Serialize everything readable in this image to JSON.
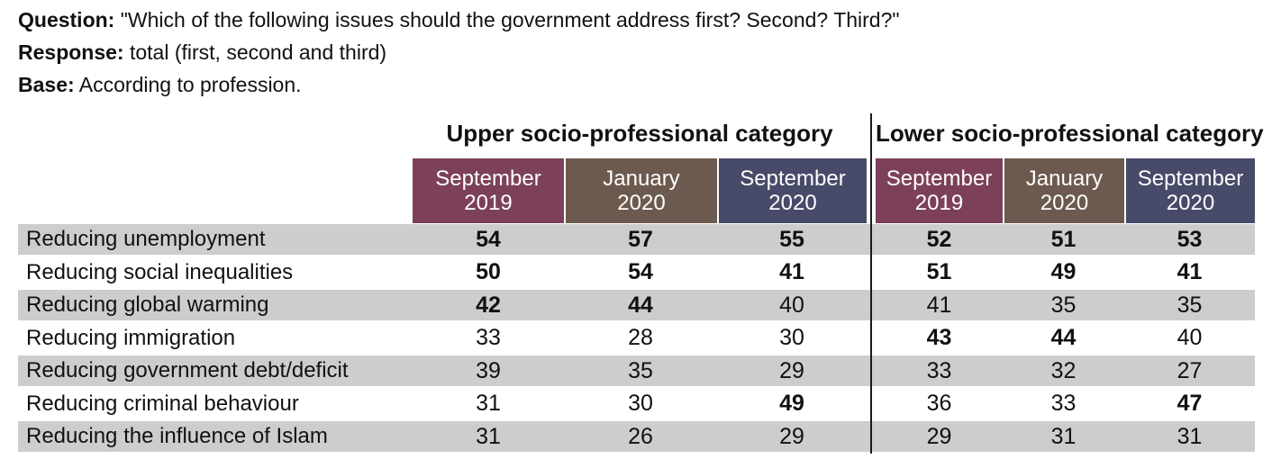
{
  "meta": {
    "question_label": "Question:",
    "question_text": "\"Which of the following issues should the government address first? Second? Third?\"",
    "response_label": "Response:",
    "response_text": "total (first, second and third)",
    "base_label": "Base:",
    "base_text": "According to profession."
  },
  "colors": {
    "september_2019": "#7c4158",
    "january_2020": "#6c5a4e",
    "september_2020": "#474a68",
    "row_alternate_gray": "#cdcdcd"
  },
  "table": {
    "groups": [
      {
        "label": "Upper socio-professional category"
      },
      {
        "label": "Lower socio-professional category"
      }
    ],
    "columns": [
      {
        "group": "upper",
        "line1": "September",
        "line2": "2019"
      },
      {
        "group": "upper",
        "line1": "January",
        "line2": "2020"
      },
      {
        "group": "upper",
        "line1": "September",
        "line2": "2020"
      },
      {
        "group": "lower",
        "line1": "September",
        "line2": "2019"
      },
      {
        "group": "lower",
        "line1": "January",
        "line2": "2020"
      },
      {
        "group": "lower",
        "line1": "September",
        "line2": "2020"
      }
    ],
    "rows": [
      {
        "label": "Reducing unemployment",
        "values": [
          "54",
          "57",
          "55",
          "52",
          "51",
          "53"
        ],
        "bolds": [
          true,
          true,
          true,
          true,
          true,
          true
        ]
      },
      {
        "label": "Reducing social inequalities",
        "values": [
          "50",
          "54",
          "41",
          "51",
          "49",
          "41"
        ],
        "bolds": [
          true,
          true,
          true,
          true,
          true,
          true
        ]
      },
      {
        "label": "Reducing global warming",
        "values": [
          "42",
          "44",
          "40",
          "41",
          "35",
          "35"
        ],
        "bolds": [
          true,
          true,
          false,
          false,
          false,
          false
        ]
      },
      {
        "label": "Reducing immigration",
        "values": [
          "33",
          "28",
          "30",
          "43",
          "44",
          "40"
        ],
        "bolds": [
          false,
          false,
          false,
          true,
          true,
          false
        ]
      },
      {
        "label": "Reducing government debt/deficit",
        "values": [
          "39",
          "35",
          "29",
          "33",
          "32",
          "27"
        ],
        "bolds": [
          false,
          false,
          false,
          false,
          false,
          false
        ]
      },
      {
        "label": "Reducing criminal behaviour",
        "values": [
          "31",
          "30",
          "49",
          "36",
          "33",
          "47"
        ],
        "bolds": [
          false,
          false,
          true,
          false,
          false,
          true
        ]
      },
      {
        "label": "Reducing the influence of Islam",
        "values": [
          "31",
          "26",
          "29",
          "29",
          "31",
          "31"
        ],
        "bolds": [
          false,
          false,
          false,
          false,
          false,
          false
        ]
      }
    ]
  },
  "chart_data": {
    "type": "table",
    "title": "Which of the following issues should the government address first? Second? Third?",
    "subtitle": "Response: total (first, second and third); Base: According to profession",
    "categories": [
      "Reducing unemployment",
      "Reducing social inequalities",
      "Reducing global warming",
      "Reducing immigration",
      "Reducing government debt/deficit",
      "Reducing criminal behaviour",
      "Reducing the influence of Islam"
    ],
    "series": [
      {
        "name": "Upper socio-professional category - September 2019",
        "values": [
          54,
          50,
          42,
          33,
          39,
          31,
          31
        ]
      },
      {
        "name": "Upper socio-professional category - January 2020",
        "values": [
          57,
          54,
          44,
          28,
          35,
          30,
          26
        ]
      },
      {
        "name": "Upper socio-professional category - September 2020",
        "values": [
          55,
          41,
          40,
          30,
          29,
          49,
          29
        ]
      },
      {
        "name": "Lower socio-professional category - September 2019",
        "values": [
          52,
          51,
          41,
          43,
          33,
          36,
          29
        ]
      },
      {
        "name": "Lower socio-professional category - January 2020",
        "values": [
          51,
          49,
          35,
          44,
          32,
          33,
          31
        ]
      },
      {
        "name": "Lower socio-professional category - September 2020",
        "values": [
          53,
          41,
          35,
          40,
          27,
          47,
          31
        ]
      }
    ],
    "layout": {
      "grid": false,
      "legend_position": "column-headers",
      "value_range": [
        0,
        100
      ]
    }
  }
}
